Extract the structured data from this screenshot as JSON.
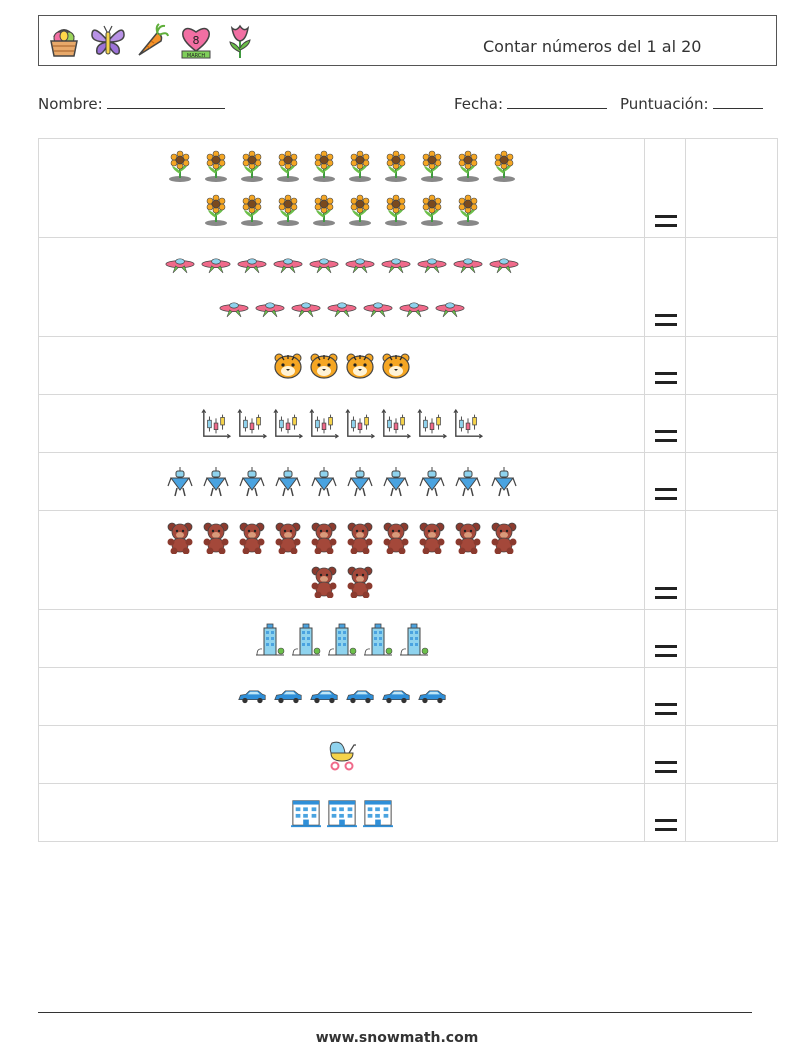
{
  "header": {
    "icons": [
      "basket-eggs-icon",
      "butterfly-icon",
      "carrot-icon",
      "heart-march-8-icon",
      "tulip-icon"
    ],
    "heart_badge_number": "8",
    "heart_badge_text": "MARCH",
    "title": "Contar números del 1 al 20"
  },
  "fields": {
    "name_label": "Nombre:",
    "date_label": "Fecha:",
    "score_label": "Puntuación:"
  },
  "rows": [
    {
      "item": "sunflower-icon",
      "lines": [
        10,
        8
      ]
    },
    {
      "item": "plane-icon",
      "lines": [
        10,
        7
      ]
    },
    {
      "item": "tiger-icon",
      "lines": [
        4
      ]
    },
    {
      "item": "candlestick-chart-icon",
      "lines": [
        8
      ]
    },
    {
      "item": "robot-icon",
      "lines": [
        10
      ]
    },
    {
      "item": "teddy-bear-icon",
      "lines": [
        10,
        2
      ]
    },
    {
      "item": "building-icon",
      "lines": [
        5
      ]
    },
    {
      "item": "car-icon",
      "lines": [
        6
      ]
    },
    {
      "item": "baby-stroller-icon",
      "lines": [
        1
      ]
    },
    {
      "item": "office-building-icon",
      "lines": [
        3
      ]
    }
  ],
  "row_heights": [
    99,
    99,
    58,
    58,
    58,
    99,
    58,
    58,
    58,
    58
  ],
  "footer": {
    "url": "www.snowmath.com"
  }
}
